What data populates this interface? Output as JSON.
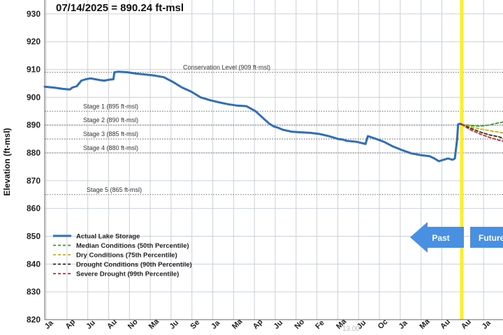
{
  "chart_data": {
    "type": "line",
    "title": "07/14/2025 = 890.24 ft-msl",
    "ylabel": "Elevation (ft-msl)",
    "xlabel": "",
    "ylim": [
      820,
      935
    ],
    "yticks": [
      820,
      830,
      840,
      850,
      860,
      870,
      880,
      890,
      900,
      910,
      920,
      930
    ],
    "x_tick_labels": [
      "Ja",
      "Ap",
      "Ju",
      "Au",
      "No",
      "Ma",
      "Ju",
      "Se",
      "Ja",
      "Ma",
      "Ap",
      "Ju",
      "No",
      "Fe",
      "Ma",
      "Ju",
      "Oc",
      "Ja",
      "Ma",
      "Au",
      "Au",
      "Ja"
    ],
    "grid": true,
    "legend_position": "bottom-left",
    "reference_lines": [
      {
        "label": "Conservation Level (909 ft-msl)",
        "value": 909
      },
      {
        "label": "Stage 1 (895 ft-msl)",
        "value": 895
      },
      {
        "label": "Stage 2 (890 ft-msl)",
        "value": 890
      },
      {
        "label": "Stage 3 (885 ft-msl)",
        "value": 885
      },
      {
        "label": "Stage 4 (880 ft-msl)",
        "value": 880
      },
      {
        "label": "Stage 5 (865 ft-msl)",
        "value": 865
      }
    ],
    "x_range": [
      0,
      100
    ],
    "today_x": 91.0,
    "series": [
      {
        "name": "Actual Lake Storage",
        "color": "#2e6fb5",
        "style": "solid",
        "x": [
          0,
          2,
          4,
          5.5,
          6,
          7,
          8,
          9,
          10,
          11,
          12,
          13,
          14,
          15,
          15.2,
          16,
          18,
          20,
          22,
          24,
          26,
          28,
          30,
          32,
          34,
          36,
          38,
          40,
          42,
          44,
          46,
          47,
          48,
          49,
          50,
          51,
          52,
          54,
          56,
          58,
          60,
          62,
          63,
          64,
          65,
          66,
          68,
          70,
          70.5,
          72,
          74,
          76,
          78,
          80,
          82,
          84,
          85,
          86,
          88,
          89,
          89.5,
          90,
          90.2,
          90.6,
          91
        ],
        "values": [
          903.8,
          903.5,
          903.0,
          902.8,
          903.5,
          904.0,
          906.0,
          906.5,
          906.8,
          906.5,
          906.2,
          906.0,
          906.3,
          906.5,
          909.0,
          909.2,
          909.0,
          908.5,
          908.2,
          907.8,
          907.2,
          905.5,
          903.5,
          902.0,
          900.0,
          899.0,
          898.2,
          897.5,
          897.0,
          896.8,
          895.0,
          893.5,
          892.0,
          890.5,
          889.5,
          889.0,
          888.3,
          887.6,
          887.4,
          887.2,
          886.8,
          886.0,
          885.5,
          885.0,
          884.8,
          884.3,
          884.0,
          883.2,
          886.0,
          885.2,
          884.0,
          882.3,
          881.0,
          879.8,
          879.2,
          878.8,
          878.0,
          877.0,
          878.0,
          877.5,
          878.0,
          885.0,
          890.2,
          890.5,
          890.24
        ]
      },
      {
        "name": "Median Conditions (50th Percentile)",
        "color": "#3a9a2c",
        "style": "dashed",
        "x": [
          91,
          93,
          95,
          97,
          99,
          100
        ],
        "values": [
          890.24,
          889.8,
          889.6,
          890.0,
          890.8,
          891.0
        ]
      },
      {
        "name": "Dry Conditions (75th Percentile)",
        "color": "#c9b400",
        "style": "dashed",
        "x": [
          91,
          93,
          95,
          97,
          99,
          100
        ],
        "values": [
          890.24,
          889.3,
          888.6,
          888.0,
          887.5,
          887.2
        ]
      },
      {
        "name": "Drought Conditions (90th Percentile)",
        "color": "#3a2010",
        "style": "dashed",
        "x": [
          91,
          93,
          95,
          97,
          99,
          100
        ],
        "values": [
          890.24,
          888.8,
          887.5,
          886.5,
          885.8,
          885.3
        ]
      },
      {
        "name": "Severe Drought (99th Percentile)",
        "color": "#c0302a",
        "style": "dashed",
        "x": [
          91,
          93,
          95,
          97,
          99,
          100
        ],
        "values": [
          890.24,
          888.2,
          886.8,
          885.6,
          884.6,
          884.2
        ]
      }
    ],
    "annotations": {
      "past_label": "Past",
      "future_label": "Future",
      "watermark": "13.00",
      "today_line_color": "#ffee22",
      "arrow_color": "#4a90e2"
    }
  }
}
